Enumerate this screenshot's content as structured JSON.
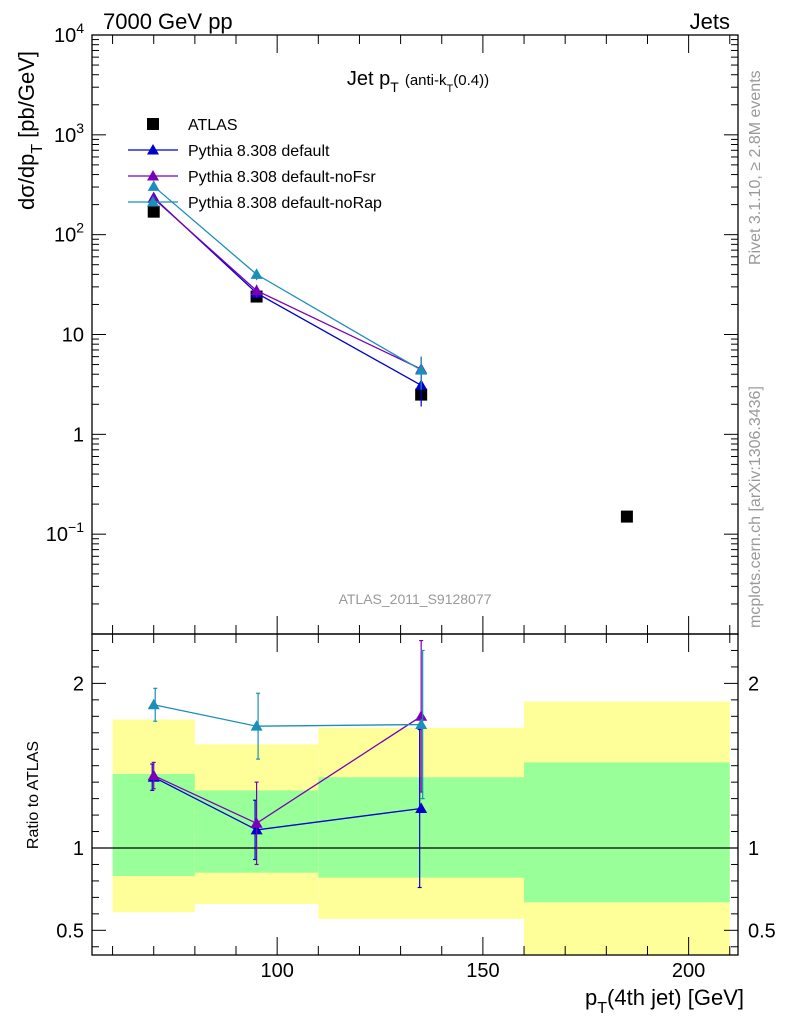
{
  "header": {
    "left": "7000 GeV pp",
    "right": "Jets"
  },
  "side_labels": {
    "rivet": "Rivet 3.1.10, ≥ 2.8M events",
    "mcplots": "mcplots.cern.ch [arXiv:1306.3436]"
  },
  "analysis_id": "ATLAS_2011_S9128077",
  "colors": {
    "data": "#000000",
    "default": "#0000cc",
    "noFsr": "#7a00b8",
    "noRap": "#1a8fb8",
    "band_yellow": "#ffff99",
    "band_green": "#99ff99"
  },
  "chart_data": [
    {
      "type": "scatter",
      "panel": "main",
      "title_main": "Jet p",
      "title_sub": "T",
      "title_rest": "(anti-k",
      "title_rest_sub": "T",
      "title_rest_end": "(0.4))",
      "ylabel": "dσ/dp",
      "ylabel_sub": "T",
      "ylabel_unit": "[pb/GeV]",
      "yscale": "log",
      "ylim": [
        0.01,
        10000
      ],
      "xlim": [
        55,
        212
      ],
      "yticks": [
        {
          "v": 10000,
          "base": "10",
          "exp": "4"
        },
        {
          "v": 1000,
          "base": "10",
          "exp": "3"
        },
        {
          "v": 100,
          "base": "10",
          "exp": "2"
        },
        {
          "v": 10,
          "base": "10",
          "exp": ""
        },
        {
          "v": 1,
          "base": "1",
          "exp": ""
        },
        {
          "v": 0.1,
          "base": "10",
          "exp": "−1"
        }
      ],
      "legend_position": "top-left",
      "series": [
        {
          "name": "ATLAS",
          "marker": "square",
          "color": "#000000",
          "x": [
            70,
            95,
            135,
            185
          ],
          "y": [
            170,
            24,
            2.5,
            0.15
          ]
        },
        {
          "name": "Pythia 8.308 default",
          "marker": "triangle",
          "color": "#0000cc",
          "x": [
            70,
            95,
            135
          ],
          "y": [
            235,
            26,
            3.1
          ],
          "err": [
            0,
            3,
            1.2
          ]
        },
        {
          "name": "Pythia 8.308 default-noFsr",
          "marker": "triangle",
          "color": "#7a00b8",
          "x": [
            70,
            95,
            135
          ],
          "y": [
            230,
            27.5,
            4.5
          ],
          "err": [
            0,
            4,
            1.5
          ]
        },
        {
          "name": "Pythia 8.308 default-noRap",
          "marker": "triangle",
          "color": "#1a8fb8",
          "x": [
            70,
            95,
            135
          ],
          "y": [
            305,
            40,
            4.4
          ],
          "err": [
            0,
            5,
            1.6
          ]
        }
      ]
    },
    {
      "type": "scatter",
      "panel": "ratio",
      "ylabel": "Ratio to ATLAS",
      "xlabel": "p",
      "xlabel_sub": "T",
      "xlabel_rest": "(4th jet) [GeV]",
      "ylim": [
        0.35,
        2.3
      ],
      "xlim": [
        55,
        212
      ],
      "yticks": [
        {
          "v": 0.5,
          "label": "0.5"
        },
        {
          "v": 1,
          "label": "1"
        },
        {
          "v": 2,
          "label": "2"
        }
      ],
      "xticks": [
        {
          "v": 100,
          "label": "100"
        },
        {
          "v": 150,
          "label": "150"
        },
        {
          "v": 200,
          "label": "200"
        }
      ],
      "bands": [
        {
          "x0": 60,
          "x1": 80,
          "yellow": [
            0.61,
            1.78
          ],
          "green": [
            0.83,
            1.45
          ]
        },
        {
          "x0": 80,
          "x1": 110,
          "yellow": [
            0.66,
            1.63
          ],
          "green": [
            0.85,
            1.35
          ]
        },
        {
          "x0": 110,
          "x1": 160,
          "yellow": [
            0.57,
            1.73
          ],
          "green": [
            0.82,
            1.43
          ]
        },
        {
          "x0": 160,
          "x1": 210,
          "yellow": [
            0.33,
            1.89
          ],
          "green": [
            0.67,
            1.52
          ]
        }
      ],
      "series": [
        {
          "name": "Pythia 8.308 default",
          "color": "#0000cc",
          "x": [
            70,
            95,
            135
          ],
          "y": [
            1.43,
            1.11,
            1.24
          ],
          "err": [
            0.08,
            0.18,
            0.48
          ]
        },
        {
          "name": "Pythia 8.308 default-noFsr",
          "color": "#7a00b8",
          "x": [
            70,
            95,
            135
          ],
          "y": [
            1.44,
            1.15,
            1.8
          ],
          "err": [
            0.08,
            0.25,
            0.46
          ]
        },
        {
          "name": "Pythia 8.308 default-noRap",
          "color": "#1a8fb8",
          "x": [
            70,
            95,
            135
          ],
          "y": [
            1.87,
            1.74,
            1.75
          ],
          "err": [
            0.1,
            0.2,
            0.45
          ]
        }
      ]
    }
  ]
}
